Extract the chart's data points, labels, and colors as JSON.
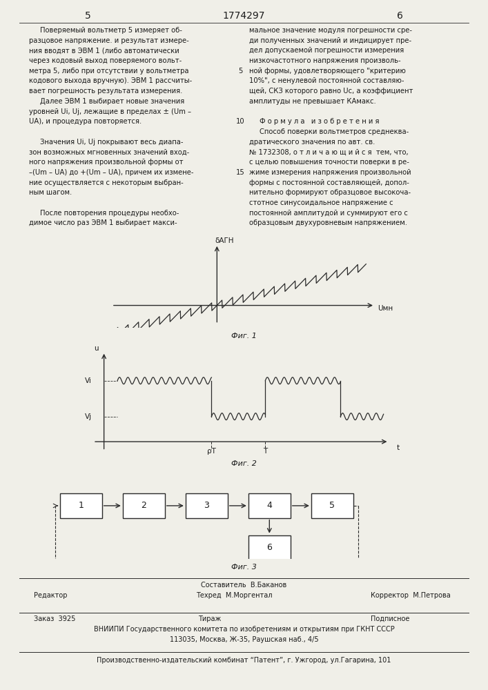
{
  "page_number_left": "5",
  "patent_number": "1774297",
  "page_number_right": "6",
  "fig1_caption": "Фиг. 1",
  "fig2_caption": "Фиг. 2",
  "fig3_caption": "Фиг. 3",
  "fig1_xlabel": "Uмн",
  "fig1_ylabel": "δАГН",
  "fig2_xlabel": "t",
  "fig2_ylabel": "u",
  "fig2_label_vi": "Vi",
  "fig2_label_vj": "Vj",
  "fig2_tick_pt": "ρT",
  "fig2_tick_t": "T",
  "fig3_boxes": [
    "1",
    "2",
    "3",
    "4",
    "5",
    "6"
  ],
  "footer_editor": "Редактор",
  "footer_composer": "Составитель  В.Баканов",
  "footer_techred": "Техред  М.Моргентал",
  "footer_corrector": "Корректор  М.Петрова",
  "footer_order": "Заказ  3925",
  "footer_tirazh": "Тираж",
  "footer_podpisnoe": "Подписное",
  "footer_vniiipi": "ВНИИПИ Государственного комитета по изобретениям и открытиям при ГКНТ СССР",
  "footer_address": "113035, Москва, Ж-35, Раушская наб., 4/5",
  "footer_patent": "Производственно-издательский комбинат “Патент”, г. Ужгород, ул.Гагарина, 101",
  "bg_color": "#f0efe8",
  "text_color": "#1a1a1a",
  "line_color": "#2a2a2a"
}
